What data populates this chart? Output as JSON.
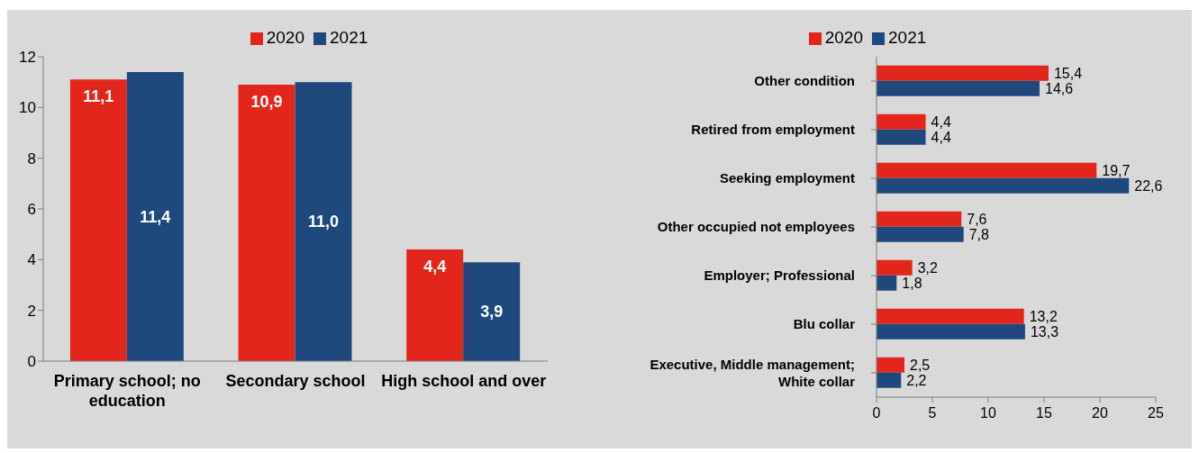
{
  "chart_data": [
    {
      "type": "bar",
      "categories": [
        "Primary school; no education",
        "Secondary school",
        "High school and over"
      ],
      "series": [
        {
          "name": "2020",
          "color": "#e3261b",
          "values": [
            11.1,
            10.9,
            4.4
          ],
          "value_labels": [
            "11,1",
            "10,9",
            "4,4"
          ]
        },
        {
          "name": "2021",
          "color": "#1f497d",
          "values": [
            11.4,
            11.0,
            3.9
          ],
          "value_labels": [
            "11,4",
            "11,0",
            "3,9"
          ]
        }
      ],
      "ylim": [
        0,
        12
      ],
      "yticks": [
        0,
        2,
        4,
        6,
        8,
        10,
        12
      ],
      "legend": "top",
      "grid": false
    },
    {
      "type": "bar",
      "orientation": "horizontal",
      "categories": [
        "Other condition",
        "Retired from employment",
        "Seeking employment",
        "Other occupied not employees",
        "Employer; Professional",
        "Blu collar",
        "Executive, Middle management; White collar"
      ],
      "series": [
        {
          "name": "2020",
          "color": "#e3261b",
          "values": [
            15.4,
            4.4,
            19.7,
            7.6,
            3.2,
            13.2,
            2.5
          ],
          "value_labels": [
            "15,4",
            "4,4",
            "19,7",
            "7,6",
            "3,2",
            "13,2",
            "2,5"
          ]
        },
        {
          "name": "2021",
          "color": "#1f497d",
          "values": [
            14.6,
            4.4,
            22.6,
            7.8,
            1.8,
            13.3,
            2.2
          ],
          "value_labels": [
            "14,6",
            "4,4",
            "22,6",
            "7,8",
            "1,8",
            "13,3",
            "2,2"
          ]
        }
      ],
      "xlim": [
        0,
        25
      ],
      "xticks": [
        0,
        5,
        10,
        15,
        20,
        25
      ],
      "legend": "top",
      "grid": false
    }
  ]
}
